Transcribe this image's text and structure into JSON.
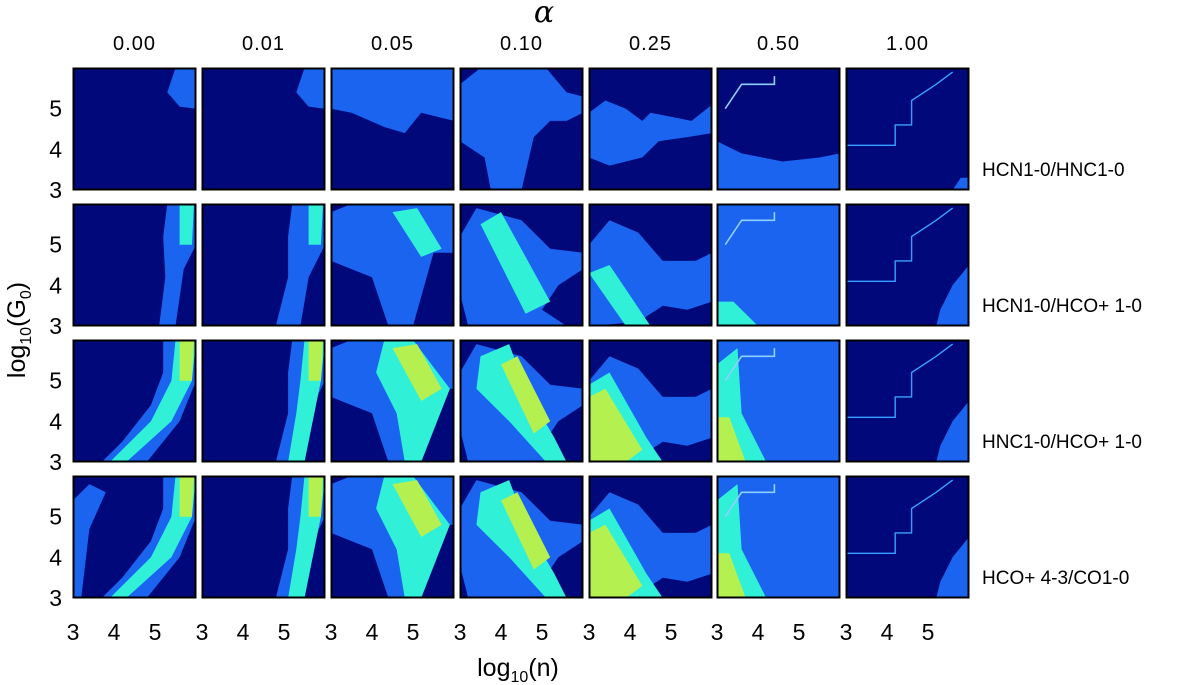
{
  "chart_data": {
    "type": "heatmap",
    "title": "",
    "column_axis_label": "α",
    "xlabel": "log10(n)",
    "ylabel": "log10(G0)",
    "columns": [
      "0.00",
      "0.01",
      "0.05",
      "0.10",
      "0.25",
      "0.50",
      "1.00"
    ],
    "rows": [
      "HCN1-0/HNC1-0",
      "HCN1-0/HCO+ 1-0",
      "HNC1-0/HCO+ 1-0",
      "HCO+ 4-3/CO1-0"
    ],
    "x_ticks": [
      "3",
      "4",
      "5"
    ],
    "y_ticks": [
      "3",
      "4",
      "5"
    ],
    "xlim": [
      3,
      6
    ],
    "ylim": [
      3,
      6
    ],
    "colors": {
      "background": "#00087a",
      "level_1": "#1a64f0",
      "level_2": "#30f0d8",
      "level_3": "#b4f050"
    }
  }
}
